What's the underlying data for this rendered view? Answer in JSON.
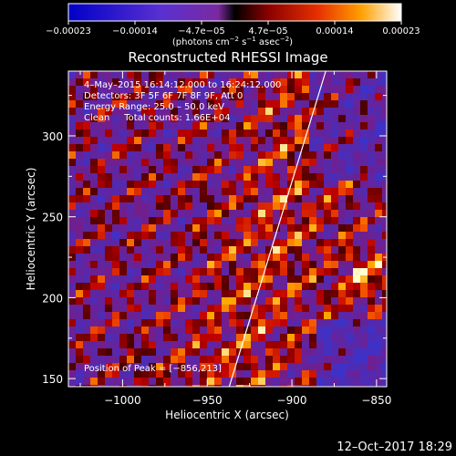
{
  "chart_data": {
    "type": "heatmap",
    "title": "Reconstructed RHESSI Image",
    "xlabel": "Heliocentric X (arcsec)",
    "ylabel": "Heliocentric Y (arcsec)",
    "xlim": [
      -1032,
      -844
    ],
    "ylim": [
      145,
      340
    ],
    "x_ticks": [
      -1000,
      -950,
      -900,
      -850
    ],
    "x_tick_labels": [
      "−1000",
      "−950",
      "−900",
      "−850"
    ],
    "y_ticks": [
      150,
      200,
      250,
      300
    ],
    "y_tick_labels": [
      "150",
      "200",
      "250",
      "300"
    ],
    "colorbar": {
      "range": [
        -0.00023,
        0.00023
      ],
      "tick_labels": [
        "−0.00023",
        "−0.00014",
        "−4.7e−05",
        "4.7e−05",
        "0.00014",
        "0.00023"
      ],
      "units_text": "(photons cm",
      "units_parts": [
        "(photons cm",
        "−2",
        " s",
        "−1",
        " asec",
        "−2",
        ")"
      ]
    },
    "annotations": {
      "time": "4–May–2015 16:14:12.000 to 16:24:12.000",
      "detectors": "Detectors: 3F 5F 6F 7F 8F 9F, Att 0",
      "energy": "Energy Range: 25.0 – 50.0 keV",
      "clean": "Clean     Total counts: 1.66E+04",
      "peak": "Position of Peak = [−856,213]"
    },
    "peak_position": [
      -856,
      213
    ],
    "limb_line": [
      [
        -937,
        145
      ],
      [
        -880,
        340
      ]
    ],
    "grid": false
  },
  "footer": {
    "date": "12–Oct–2017 18:29"
  },
  "colors": {
    "background": "#000000",
    "text": "#ffffff"
  }
}
